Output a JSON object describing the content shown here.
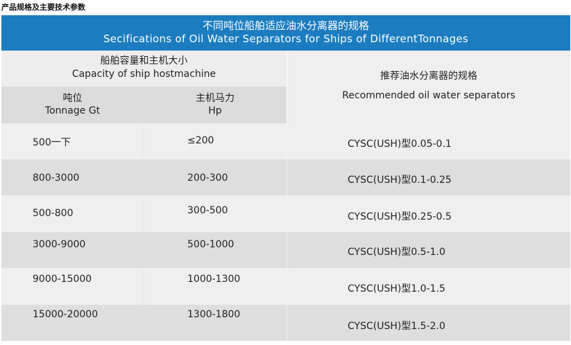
{
  "page_title": "产品规格及主要技术参数",
  "banner": {
    "title_zh": "不同吨位船舶适应油水分离器的规格",
    "title_en": "Secifications of Oil Water Separators for Ships of DifferentTonnages"
  },
  "header": {
    "capacity_zh": "船舶容量和主机大小",
    "capacity_en": "Capacity of ship hostmachine",
    "tonnage_zh": "吨位",
    "tonnage_en": "Tonnage Gt",
    "hp_zh": "主机马力",
    "hp_en": "Hp",
    "recommended_zh": "推荐油水分离器的规格",
    "recommended_en": "Recommended oil water separators"
  },
  "rows": [
    {
      "tonnage": "500一下",
      "hp": "≤200",
      "model": "CYSC(USH)型0.05-0.1"
    },
    {
      "tonnage": "800-3000",
      "hp": "200-300",
      "model": "CYSC(USH)型0.1-0.25"
    },
    {
      "tonnage": "500-800",
      "hp": "300-500",
      "model": "CYSC(USH)型0.25-0.5"
    },
    {
      "tonnage": "3000-9000",
      "hp": "500-1000",
      "model": "CYSC(USH)型0.5-1.0"
    },
    {
      "tonnage": "9000-15000",
      "hp": "1000-1300",
      "model": "CYSC(USH)型1.0-1.5"
    },
    {
      "tonnage": "15000-20000",
      "hp": "1300-1800",
      "model": "CYSC(USH)型1.5-2.0"
    }
  ],
  "colors": {
    "banner": "#1b7cc0",
    "row_light": "#efefef",
    "row_dark": "#dedede"
  }
}
